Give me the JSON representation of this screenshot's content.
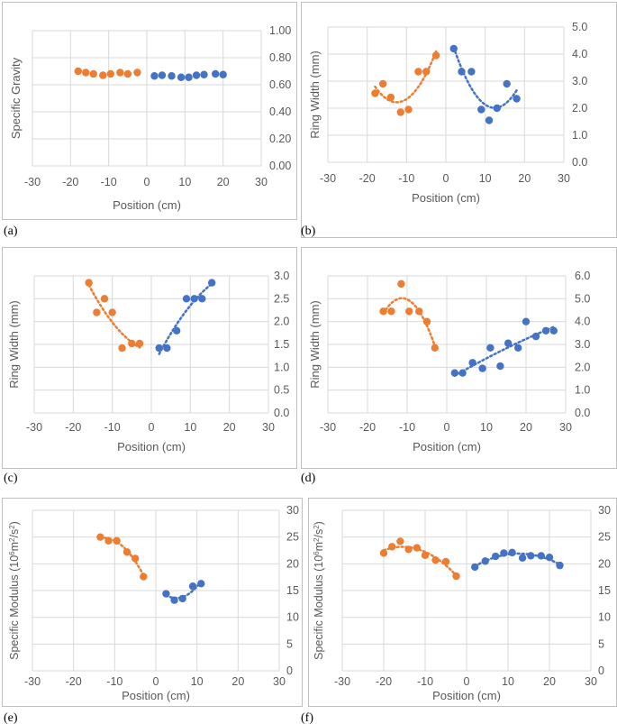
{
  "colors": {
    "orange": "#ED7D31",
    "blue": "#4472C4",
    "grid": "#D9D9D9",
    "frame": "#BFBFBF",
    "text": "#595959"
  },
  "chart_data": [
    {
      "tag": "(a)",
      "type": "scatter",
      "title": "",
      "xlabel": "Position (cm)",
      "ylabel": "Specific Gravity",
      "xlim": [
        -30,
        30
      ],
      "ylim": [
        0,
        1
      ],
      "xticks": [
        -30,
        -20,
        -10,
        0,
        10,
        20,
        30
      ],
      "xtick_labels": [
        "-30",
        "-20",
        "-10",
        "0",
        "10",
        "20",
        "30"
      ],
      "yticks": [
        0,
        0.2,
        0.4,
        0.6,
        0.8,
        1
      ],
      "ytick_labels": [
        "0.00",
        "0.20",
        "0.40",
        "0.60",
        "0.80",
        "1.00"
      ],
      "grid": true,
      "series": [
        {
          "name": "orange",
          "color": "#ED7D31",
          "trendline": false,
          "x": [
            -18,
            -16,
            -14,
            -11.5,
            -9.5,
            -7,
            -5,
            -2.5
          ],
          "y": [
            0.7,
            0.69,
            0.68,
            0.67,
            0.68,
            0.69,
            0.68,
            0.69
          ]
        },
        {
          "name": "blue",
          "color": "#4472C4",
          "trendline": false,
          "x": [
            2,
            4,
            6.5,
            9,
            11,
            13,
            15,
            18,
            20
          ],
          "y": [
            0.665,
            0.67,
            0.665,
            0.655,
            0.655,
            0.67,
            0.675,
            0.68,
            0.675
          ]
        }
      ]
    },
    {
      "tag": "(b)",
      "type": "scatter",
      "title": "",
      "xlabel": "Position (cm)",
      "ylabel": "Ring Width (mm)",
      "xlim": [
        -30,
        30
      ],
      "ylim": [
        0,
        5
      ],
      "xticks": [
        -30,
        -20,
        -10,
        0,
        10,
        20,
        30
      ],
      "xtick_labels": [
        "-30",
        "-20",
        "-10",
        "0",
        "10",
        "20",
        "30"
      ],
      "yticks": [
        0,
        1,
        2,
        3,
        4,
        5
      ],
      "ytick_labels": [
        "0.0",
        "1.0",
        "2.0",
        "3.0",
        "4.0",
        "5.0"
      ],
      "grid": true,
      "series": [
        {
          "name": "orange",
          "color": "#ED7D31",
          "trendline": true,
          "x": [
            -18,
            -16,
            -14,
            -11.5,
            -9.5,
            -7,
            -5,
            -2.5
          ],
          "y": [
            2.55,
            2.9,
            2.4,
            1.85,
            1.95,
            3.35,
            3.35,
            3.95
          ]
        },
        {
          "name": "blue",
          "color": "#4472C4",
          "trendline": true,
          "x": [
            2,
            4,
            6.5,
            9,
            11,
            13,
            15.5,
            18
          ],
          "y": [
            4.2,
            3.35,
            3.35,
            1.95,
            1.55,
            2.0,
            2.9,
            2.35
          ]
        }
      ]
    },
    {
      "tag": "(c)",
      "type": "scatter",
      "title": "",
      "xlabel": "Position (cm)",
      "ylabel": "Ring Width (mm)",
      "xlim": [
        -30,
        30
      ],
      "ylim": [
        0,
        3
      ],
      "xticks": [
        -30,
        -20,
        -10,
        0,
        10,
        20,
        30
      ],
      "xtick_labels": [
        "-30",
        "-20",
        "-10",
        "0",
        "10",
        "20",
        "30"
      ],
      "yticks": [
        0,
        0.5,
        1,
        1.5,
        2,
        2.5,
        3
      ],
      "ytick_labels": [
        "0.0",
        "0.5",
        "1.0",
        "1.5",
        "2.0",
        "2.5",
        "3.0"
      ],
      "grid": true,
      "series": [
        {
          "name": "orange",
          "color": "#ED7D31",
          "trendline": true,
          "x": [
            -16,
            -14,
            -12,
            -10,
            -7.5,
            -5,
            -3
          ],
          "y": [
            2.85,
            2.2,
            2.5,
            2.2,
            1.42,
            1.52,
            1.52
          ]
        },
        {
          "name": "blue",
          "color": "#4472C4",
          "trendline": true,
          "x": [
            2,
            4,
            6.5,
            9,
            11,
            13,
            15.5
          ],
          "y": [
            1.42,
            1.42,
            1.8,
            2.5,
            2.5,
            2.5,
            2.85
          ]
        }
      ]
    },
    {
      "tag": "(d)",
      "type": "scatter",
      "title": "",
      "xlabel": "Position (cm)",
      "ylabel": "Ring Width (mm)",
      "xlim": [
        -30,
        30
      ],
      "ylim": [
        0,
        6
      ],
      "xticks": [
        -30,
        -20,
        -10,
        0,
        10,
        20,
        30
      ],
      "xtick_labels": [
        "-30",
        "-20",
        "-10",
        "0",
        "10",
        "20",
        "30"
      ],
      "yticks": [
        0,
        1,
        2,
        3,
        4,
        5,
        6
      ],
      "ytick_labels": [
        "0.0",
        "1.0",
        "2.0",
        "3.0",
        "4.0",
        "5.0",
        "6.0"
      ],
      "grid": true,
      "series": [
        {
          "name": "orange",
          "color": "#ED7D31",
          "trendline": true,
          "x": [
            -16,
            -14,
            -11.5,
            -9.5,
            -7,
            -5,
            -3
          ],
          "y": [
            4.45,
            4.45,
            5.65,
            4.45,
            4.45,
            4.0,
            2.85
          ]
        },
        {
          "name": "blue",
          "color": "#4472C4",
          "trendline": true,
          "x": [
            2,
            4,
            6.5,
            9,
            11,
            13.5,
            15.5,
            18,
            20,
            22.5,
            25,
            27
          ],
          "y": [
            1.75,
            1.75,
            2.2,
            1.95,
            2.85,
            2.05,
            3.05,
            2.85,
            4.0,
            3.35,
            3.6,
            3.6
          ]
        }
      ]
    },
    {
      "tag": "(e)",
      "type": "scatter",
      "title": "",
      "xlabel": "Position (cm)",
      "ylabel_main": "Specific Modulus (10",
      "ylabel_sup1": "6",
      "ylabel_mid": "m",
      "ylabel_sup2": "2",
      "ylabel_mid2": "/s",
      "ylabel_sup3": "2",
      "ylabel_end": ")",
      "xlim": [
        -30,
        30
      ],
      "ylim": [
        0,
        30
      ],
      "xticks": [
        -30,
        -20,
        -10,
        0,
        10,
        20,
        30
      ],
      "xtick_labels": [
        "-30",
        "-20",
        "-10",
        "0",
        "10",
        "20",
        "30"
      ],
      "yticks": [
        0,
        5,
        10,
        15,
        20,
        25,
        30
      ],
      "ytick_labels": [
        "0",
        "5",
        "10",
        "15",
        "20",
        "25",
        "30"
      ],
      "grid": true,
      "series": [
        {
          "name": "orange",
          "color": "#ED7D31",
          "trendline": true,
          "x": [
            -13.5,
            -11.5,
            -9.5,
            -7,
            -5,
            -3
          ],
          "y": [
            25,
            24.3,
            24.3,
            22.2,
            21,
            17.6
          ]
        },
        {
          "name": "blue",
          "color": "#4472C4",
          "trendline": true,
          "x": [
            2.5,
            4.5,
            6.5,
            9,
            11
          ],
          "y": [
            14.4,
            13.2,
            13.5,
            15.8,
            16.3
          ]
        }
      ]
    },
    {
      "tag": "(f)",
      "type": "scatter",
      "title": "",
      "xlabel": "Position (cm)",
      "ylabel_main": "Specific Modulus (10",
      "ylabel_sup1": "6",
      "ylabel_mid": "m",
      "ylabel_sup2": "2",
      "ylabel_mid2": "/s",
      "ylabel_sup3": "2",
      "ylabel_end": ")",
      "xlim": [
        -30,
        30
      ],
      "ylim": [
        0,
        30
      ],
      "xticks": [
        -30,
        -20,
        -10,
        0,
        10,
        20,
        30
      ],
      "xtick_labels": [
        "-30",
        "-20",
        "-10",
        "0",
        "10",
        "20",
        "30"
      ],
      "yticks": [
        0,
        5,
        10,
        15,
        20,
        25,
        30
      ],
      "ytick_labels": [
        "0",
        "5",
        "10",
        "15",
        "20",
        "25",
        "30"
      ],
      "grid": true,
      "series": [
        {
          "name": "orange",
          "color": "#ED7D31",
          "trendline": true,
          "x": [
            -20,
            -18,
            -16,
            -14,
            -12,
            -10,
            -7.5,
            -5,
            -2.5
          ],
          "y": [
            22,
            23.2,
            24.2,
            22.7,
            23,
            21.6,
            20.7,
            20.4,
            17.7
          ]
        },
        {
          "name": "blue",
          "color": "#4472C4",
          "trendline": true,
          "x": [
            2,
            4.5,
            7,
            9,
            11,
            13.5,
            15.5,
            18,
            20,
            22.5
          ],
          "y": [
            19.4,
            20.5,
            21.4,
            22,
            22.1,
            21.1,
            21.5,
            21.5,
            21.2,
            19.7
          ]
        }
      ]
    }
  ]
}
